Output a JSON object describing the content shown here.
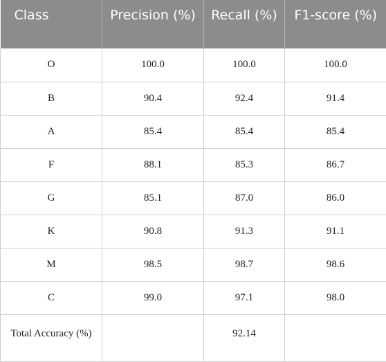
{
  "table": {
    "headers": [
      "Class",
      "Precision (%)",
      "Recall (%)",
      "F1-score (%)"
    ],
    "rows": [
      {
        "class": "O",
        "precision": "100.0",
        "recall": "100.0",
        "f1": "100.0"
      },
      {
        "class": "B",
        "precision": "90.4",
        "recall": "92.4",
        "f1": "91.4"
      },
      {
        "class": "A",
        "precision": "85.4",
        "recall": "85.4",
        "f1": "85.4"
      },
      {
        "class": "F",
        "precision": "88.1",
        "recall": "85.3",
        "f1": "86.7"
      },
      {
        "class": "G",
        "precision": "85.1",
        "recall": "87.0",
        "f1": "86.0"
      },
      {
        "class": "K",
        "precision": "90.8",
        "recall": "91.3",
        "f1": "91.1"
      },
      {
        "class": "M",
        "precision": "98.5",
        "recall": "98.7",
        "f1": "98.6"
      },
      {
        "class": "C",
        "precision": "99.0",
        "recall": "97.1",
        "f1": "98.0"
      }
    ],
    "total": {
      "label": "Total Accuracy (%)",
      "precision": "",
      "recall": "92.14",
      "f1": ""
    }
  },
  "colors": {
    "header_bg": "#8c8c8c",
    "header_text": "#ffffff",
    "grid": "#cfcfcf"
  }
}
